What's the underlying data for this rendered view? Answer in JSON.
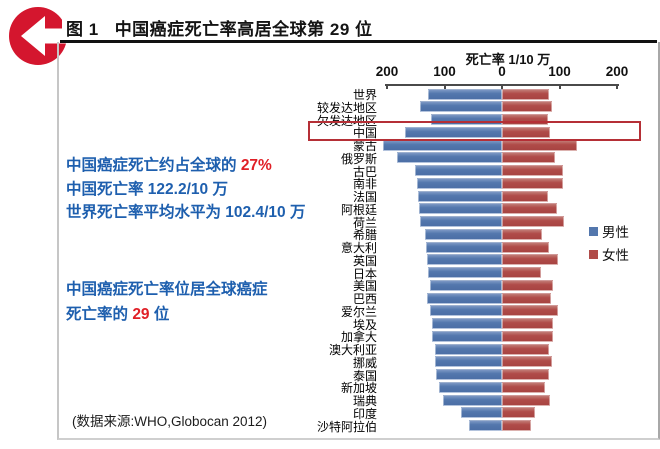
{
  "header": {
    "figure_label": "图 1",
    "title": "中国癌症死亡率高居全球第 29 位"
  },
  "annotations": {
    "line1_prefix": "中国癌症死亡约占全球的 ",
    "line1_highlight": "27%",
    "line2": "中国死亡率 122.2/10 万",
    "line3": "世界死亡率平均水平为 102.4/10 万",
    "line4": "中国癌症死亡率位居全球癌症",
    "line5_prefix": "死亡率的 ",
    "line5_highlight": "29",
    "line5_suffix": " 位",
    "source": "(数据来源:WHO,Globocan 2012)"
  },
  "chart_data": {
    "type": "bar",
    "variant": "diverging-tornado",
    "axis_title": "死亡率 1/10 万",
    "axis_tick_labels": [
      "200",
      "100",
      "0",
      "100",
      "200"
    ],
    "axis_tick_values": [
      -200,
      -100,
      0,
      100,
      200
    ],
    "xlim": [
      -200,
      200
    ],
    "grid": false,
    "legend_position": "right",
    "highlighted_category": "中国",
    "categories": [
      "世界",
      "较发达地区",
      "欠发达地区",
      "中国",
      "蒙古",
      "俄罗斯",
      "古巴",
      "南非",
      "法国",
      "阿根廷",
      "荷兰",
      "希腊",
      "意大利",
      "英国",
      "日本",
      "美国",
      "巴西",
      "爱尔兰",
      "埃及",
      "加拿大",
      "澳大利亚",
      "挪威",
      "泰国",
      "新加坡",
      "瑞典",
      "印度",
      "沙特阿拉伯"
    ],
    "series": [
      {
        "name": "男性",
        "side": "left",
        "color": "#5377ad",
        "values": [
          128,
          143,
          124,
          169,
          207,
          182,
          151,
          148,
          146,
          144,
          143,
          134,
          132,
          130,
          128,
          126,
          130,
          126,
          122,
          121,
          117,
          117,
          115,
          109,
          102,
          71,
          58
        ]
      },
      {
        "name": "女性",
        "side": "right",
        "color": "#b04c49",
        "values": [
          82,
          87,
          80,
          84,
          130,
          92,
          106,
          106,
          80,
          95,
          107,
          70,
          82,
          98,
          68,
          89,
          86,
          98,
          88,
          89,
          81,
          87,
          81,
          75,
          84,
          58,
          50
        ]
      }
    ]
  },
  "colors": {
    "badge_red": "#d4162e",
    "annotation_blue": "#1e5fae",
    "accent_red": "#e01f26",
    "highlight_box": "#b52f36",
    "bar_male": "#5377ad",
    "bar_female": "#b04c49",
    "frame_gray": "#c6c6c6"
  }
}
